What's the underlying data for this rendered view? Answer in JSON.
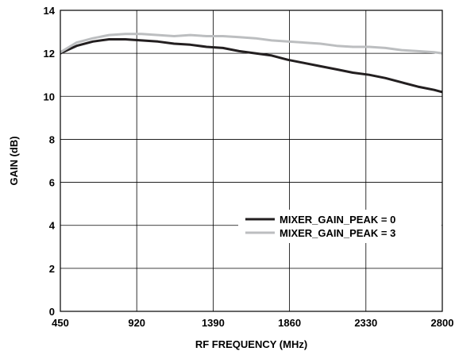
{
  "chart_data": {
    "type": "line",
    "title": "",
    "xlabel": "RF FREQUENCY (MHz)",
    "ylabel": "GAIN (dB)",
    "xlim": [
      450,
      2800
    ],
    "ylim": [
      0,
      14
    ],
    "xticks": [
      450,
      920,
      1390,
      1860,
      2330,
      2800
    ],
    "yticks": [
      0,
      2,
      4,
      6,
      8,
      10,
      12,
      14
    ],
    "grid": true,
    "legend_position": "right",
    "series": [
      {
        "name": "MIXER_GAIN_PEAK = 0",
        "color": "#231f20",
        "x": [
          450,
          550,
          650,
          750,
          850,
          950,
          1050,
          1150,
          1250,
          1350,
          1450,
          1550,
          1650,
          1750,
          1850,
          1950,
          2050,
          2150,
          2250,
          2350,
          2450,
          2550,
          2650,
          2750,
          2800
        ],
        "y": [
          12.0,
          12.35,
          12.55,
          12.65,
          12.65,
          12.6,
          12.55,
          12.45,
          12.4,
          12.3,
          12.25,
          12.1,
          12.0,
          11.9,
          11.7,
          11.55,
          11.4,
          11.25,
          11.1,
          11.0,
          10.85,
          10.65,
          10.45,
          10.3,
          10.2
        ]
      },
      {
        "name": "MIXER_GAIN_PEAK = 3",
        "color": "#bcbec0",
        "x": [
          450,
          550,
          650,
          750,
          850,
          950,
          1050,
          1150,
          1250,
          1350,
          1450,
          1550,
          1650,
          1750,
          1850,
          1950,
          2050,
          2150,
          2250,
          2350,
          2450,
          2550,
          2650,
          2750,
          2800
        ],
        "y": [
          12.05,
          12.5,
          12.7,
          12.85,
          12.9,
          12.9,
          12.85,
          12.8,
          12.85,
          12.8,
          12.8,
          12.75,
          12.7,
          12.6,
          12.55,
          12.5,
          12.45,
          12.35,
          12.3,
          12.3,
          12.25,
          12.15,
          12.1,
          12.05,
          12.0
        ]
      }
    ]
  }
}
